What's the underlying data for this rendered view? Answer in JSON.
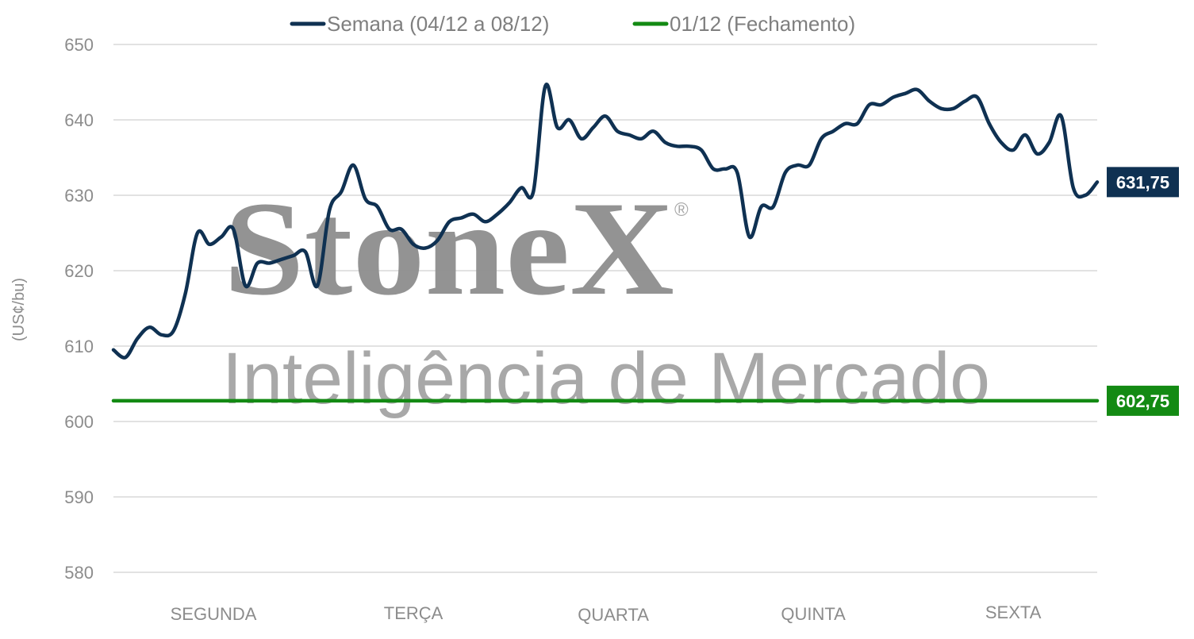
{
  "chart_data": {
    "type": "line",
    "title": "",
    "xlabel": "",
    "ylabel": "(US¢/bu)",
    "ylim": [
      580,
      650
    ],
    "yticks": [
      650,
      640,
      630,
      620,
      610,
      600,
      590,
      580
    ],
    "grid": true,
    "legend_position": "top",
    "categories": [
      "SEGUNDA",
      "TERÇA",
      "QUARTA",
      "QUINTA",
      "SEXTA"
    ],
    "series": [
      {
        "name": "Semana (04/12 a 08/12)",
        "color": "#0f3152",
        "end_label": "631,75",
        "x": [
          0,
          0.06,
          0.12,
          0.18,
          0.24,
          0.3,
          0.36,
          0.42,
          0.48,
          0.54,
          0.6,
          0.66,
          0.72,
          0.78,
          0.84,
          0.9,
          0.96,
          1.02,
          1.08,
          1.14,
          1.2,
          1.26,
          1.32,
          1.38,
          1.44,
          1.5,
          1.56,
          1.62,
          1.68,
          1.74,
          1.8,
          1.86,
          1.92,
          1.98,
          2.04,
          2.1,
          2.16,
          2.22,
          2.28,
          2.34,
          2.4,
          2.46,
          2.52,
          2.58,
          2.64,
          2.7,
          2.76,
          2.82,
          2.88,
          2.94,
          3.0,
          3.06,
          3.12,
          3.18,
          3.24,
          3.3,
          3.36,
          3.42,
          3.48,
          3.54,
          3.6,
          3.66,
          3.72,
          3.78,
          3.84,
          3.9,
          3.96,
          4.02,
          4.08,
          4.14,
          4.2,
          4.26,
          4.32,
          4.38,
          4.44,
          4.5,
          4.56,
          4.62,
          4.68,
          4.74,
          4.8,
          4.86,
          4.92
        ],
        "values": [
          609.5,
          608.5,
          611.0,
          612.5,
          611.5,
          612.0,
          617.0,
          625.0,
          623.5,
          624.5,
          625.5,
          618.0,
          621.0,
          621.0,
          621.5,
          622.0,
          622.5,
          618.0,
          628.0,
          630.5,
          634.0,
          629.5,
          628.5,
          625.5,
          625.5,
          623.5,
          623.0,
          624.0,
          626.5,
          627.0,
          627.5,
          626.5,
          627.5,
          629.0,
          631.0,
          630.5,
          644.5,
          639.0,
          640.0,
          637.5,
          639.0,
          640.5,
          638.5,
          638.0,
          637.5,
          638.5,
          637.0,
          636.5,
          636.5,
          636.0,
          633.5,
          633.5,
          633.0,
          624.5,
          628.5,
          628.5,
          633.0,
          634.0,
          634.0,
          637.5,
          638.5,
          639.5,
          639.5,
          642.0,
          642.0,
          643.0,
          643.5,
          644.0,
          642.5,
          641.5,
          641.5,
          642.5,
          643.0,
          639.5,
          637.0,
          636.0,
          638.0,
          635.5,
          637.0,
          640.5,
          631.0,
          630.0,
          631.75
        ]
      },
      {
        "name": "01/12 (Fechamento)",
        "color": "#138a13",
        "end_label": "602,75",
        "x": [
          0,
          4.92
        ],
        "values": [
          602.75,
          602.75
        ]
      }
    ]
  },
  "watermark": {
    "brand": "StoneX",
    "registered": "®",
    "subtitle": "Inteligência de Mercado"
  }
}
